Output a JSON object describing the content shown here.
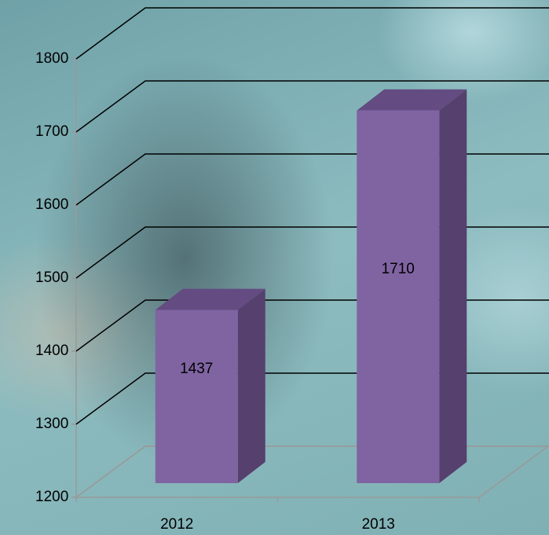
{
  "chart_data": {
    "type": "bar",
    "categories": [
      "2012",
      "2013"
    ],
    "values": [
      1437,
      1710
    ],
    "color": "#8064a2",
    "ylim": [
      1200,
      1800
    ],
    "yticks": [
      1200,
      1300,
      1400,
      1500,
      1600,
      1700,
      1800
    ],
    "grid": true
  }
}
